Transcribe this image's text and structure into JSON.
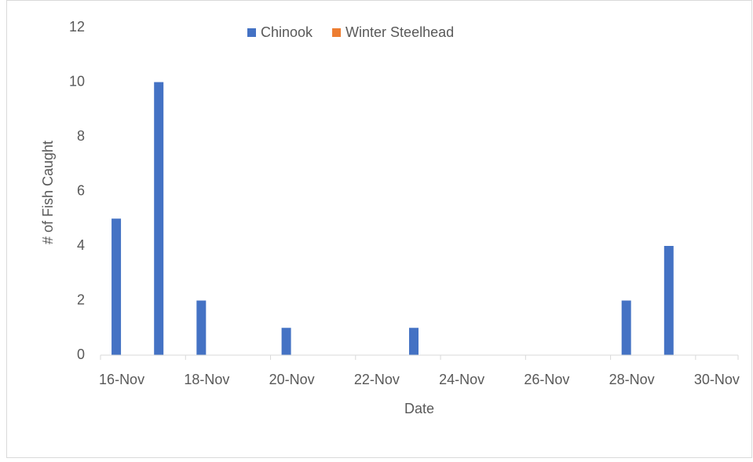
{
  "chart_data": {
    "type": "bar",
    "xlabel": "Date",
    "ylabel": "# of Fish Caught",
    "categories": [
      "16-Nov",
      null,
      "18-Nov",
      null,
      "20-Nov",
      null,
      "22-Nov",
      null,
      "24-Nov",
      null,
      "26-Nov",
      null,
      "28-Nov",
      null,
      "30-Nov"
    ],
    "series": [
      {
        "name": "Chinook",
        "color": "#4472c4",
        "values": [
          5,
          10,
          2,
          0,
          1,
          0,
          0,
          1,
          0,
          0,
          0,
          0,
          2,
          4,
          0
        ]
      },
      {
        "name": "Winter Steelhead",
        "color": "#ed7d31",
        "values": [
          0,
          0,
          0,
          0,
          0,
          0,
          0,
          0,
          0,
          0,
          0,
          0,
          0,
          0,
          0
        ]
      }
    ],
    "ylim": [
      0,
      12
    ],
    "yticks": [
      0,
      2,
      4,
      6,
      8,
      10,
      12
    ],
    "grid": false,
    "legend": "top"
  }
}
